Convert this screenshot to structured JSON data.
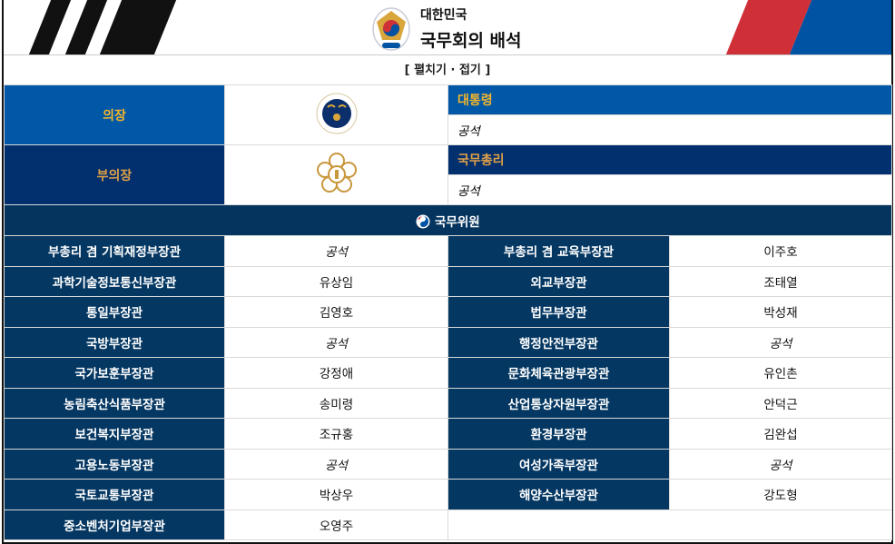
{
  "header": {
    "country": "대한민국",
    "title": "국무회의 배석"
  },
  "toggle_label": "[ 펼치기 · 접기 ]",
  "chair": {
    "role": "의장",
    "position": "대통령",
    "holder": "공석"
  },
  "vice_chair": {
    "role": "부의장",
    "position": "국무총리",
    "holder": "공석"
  },
  "ministers_header": "국무위원",
  "colors": {
    "chair_bg": "#0058a6",
    "vice_bg": "#022f6e",
    "label_bg": "#043762",
    "gold": "#f4b52c",
    "red": "#cf3038",
    "blue": "#0052a3"
  },
  "ministers": [
    [
      {
        "title": "부총리 겸 기획재정부장관",
        "name": "공석",
        "vacant": true
      },
      {
        "title": "부총리 겸 교육부장관",
        "name": "이주호",
        "vacant": false
      }
    ],
    [
      {
        "title": "과학기술정보통신부장관",
        "name": "유상임",
        "vacant": false
      },
      {
        "title": "외교부장관",
        "name": "조태열",
        "vacant": false
      }
    ],
    [
      {
        "title": "통일부장관",
        "name": "김영호",
        "vacant": false
      },
      {
        "title": "법무부장관",
        "name": "박성재",
        "vacant": false
      }
    ],
    [
      {
        "title": "국방부장관",
        "name": "공석",
        "vacant": true
      },
      {
        "title": "행정안전부장관",
        "name": "공석",
        "vacant": true
      }
    ],
    [
      {
        "title": "국가보훈부장관",
        "name": "강정애",
        "vacant": false
      },
      {
        "title": "문화체육관광부장관",
        "name": "유인촌",
        "vacant": false
      }
    ],
    [
      {
        "title": "농림축산식품부장관",
        "name": "송미령",
        "vacant": false
      },
      {
        "title": "산업통상자원부장관",
        "name": "안덕근",
        "vacant": false
      }
    ],
    [
      {
        "title": "보건복지부장관",
        "name": "조규홍",
        "vacant": false
      },
      {
        "title": "환경부장관",
        "name": "김완섭",
        "vacant": false
      }
    ],
    [
      {
        "title": "고용노동부장관",
        "name": "공석",
        "vacant": true
      },
      {
        "title": "여성가족부장관",
        "name": "공석",
        "vacant": true
      }
    ],
    [
      {
        "title": "국토교통부장관",
        "name": "박상우",
        "vacant": false
      },
      {
        "title": "해양수산부장관",
        "name": "강도형",
        "vacant": false
      }
    ],
    [
      {
        "title": "중소벤처기업부장관",
        "name": "오영주",
        "vacant": false
      }
    ]
  ]
}
